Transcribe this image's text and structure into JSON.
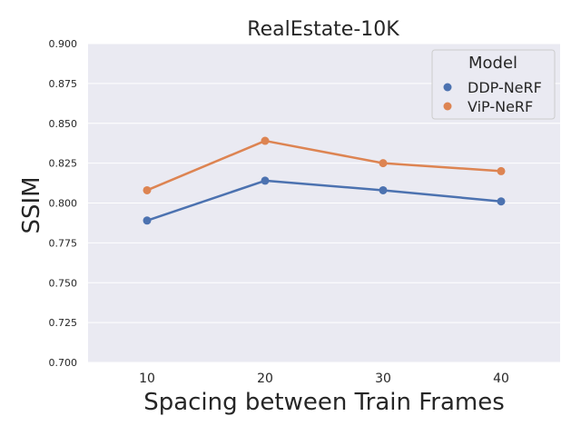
{
  "chart_data": {
    "type": "line",
    "title": "RealEstate-10K",
    "xlabel": "Spacing between Train Frames",
    "ylabel": "SSIM",
    "categories": [
      "10",
      "20",
      "30",
      "40"
    ],
    "ylim": [
      0.7,
      0.9
    ],
    "yticks": [
      "0.700",
      "0.725",
      "0.750",
      "0.775",
      "0.800",
      "0.825",
      "0.850",
      "0.875",
      "0.900"
    ],
    "grid": true,
    "legend": {
      "title": "Model",
      "position": "top-right"
    },
    "series": [
      {
        "name": "DDP-NeRF",
        "values": [
          0.789,
          0.814,
          0.808,
          0.801
        ],
        "color": "#4c72b0"
      },
      {
        "name": "ViP-NeRF",
        "values": [
          0.808,
          0.839,
          0.825,
          0.82
        ],
        "color": "#dd8452"
      }
    ],
    "background_color": "#eaeaf2",
    "grid_color": "#ffffff"
  }
}
